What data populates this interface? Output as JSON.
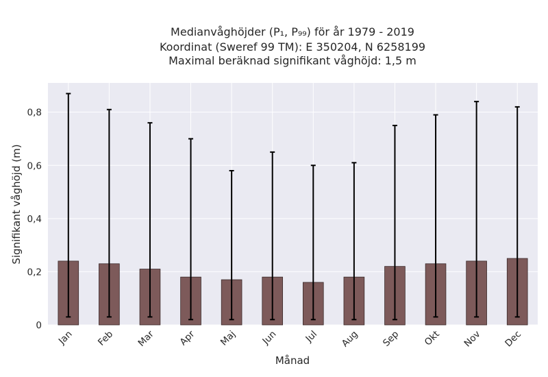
{
  "chart_data": {
    "type": "bar",
    "title_lines": [
      "Medianvåghöjder (P₁, P₉₉) för år 1979 - 2019",
      "Koordinat (Sweref 99 TM): E 350204, N 6258199",
      "Maximal beräknad signifikant våghöjd: 1,5 m"
    ],
    "xlabel": "Månad",
    "ylabel": "Signifikant våghöjd (m)",
    "categories": [
      "Jan",
      "Feb",
      "Mar",
      "Apr",
      "Maj",
      "Jun",
      "Jul",
      "Aug",
      "Sep",
      "Okt",
      "Nov",
      "Dec"
    ],
    "values": [
      0.24,
      0.23,
      0.21,
      0.18,
      0.17,
      0.18,
      0.16,
      0.18,
      0.22,
      0.23,
      0.24,
      0.25
    ],
    "error_low": [
      0.03,
      0.03,
      0.03,
      0.02,
      0.02,
      0.02,
      0.02,
      0.02,
      0.02,
      0.03,
      0.03,
      0.03
    ],
    "error_high": [
      0.87,
      0.81,
      0.76,
      0.7,
      0.58,
      0.65,
      0.6,
      0.61,
      0.75,
      0.79,
      0.84,
      0.82
    ],
    "ylim": [
      0,
      0.91
    ],
    "yticks": [
      0,
      0.2,
      0.4,
      0.6,
      0.8
    ],
    "ytick_labels": [
      "0",
      "0,2",
      "0,4",
      "0,6",
      "0,8"
    ],
    "grid": true,
    "colors": {
      "bar": "#7d5a5a",
      "bar_edge": "#3a2a2a",
      "error": "#000000",
      "plot_bg": "#eaeaf2",
      "grid": "#ffffff"
    }
  }
}
